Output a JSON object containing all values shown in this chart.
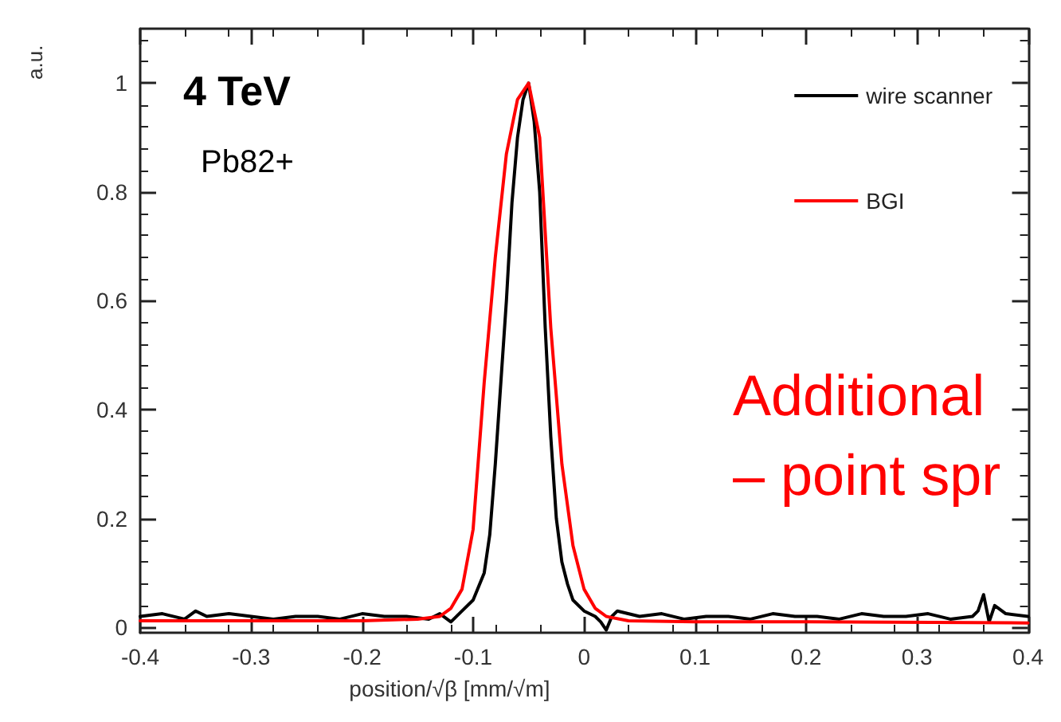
{
  "chart_data": {
    "type": "line",
    "title": "4 TeV",
    "subtitle": "Pb82+",
    "xlabel": "position/√β [mm/√m]",
    "ylabel": "a.u.",
    "annotations": [
      "Additional\n– point spr"
    ],
    "xlim": [
      -0.4,
      0.4
    ],
    "xticks": [
      -0.4,
      -0.3,
      -0.2,
      -0.1,
      0,
      0.1,
      0.2,
      0.3,
      0.4
    ],
    "ylim": [
      -0.01,
      1.1
    ],
    "yticks": [
      0,
      0.2,
      0.4,
      0.6,
      0.8,
      1
    ],
    "grid": false,
    "legend": "top right",
    "marker": "none",
    "line_style": "solid",
    "series": [
      {
        "name": "wire scanner",
        "color": "#000000",
        "x": [
          -0.4,
          -0.38,
          -0.36,
          -0.35,
          -0.34,
          -0.32,
          -0.3,
          -0.28,
          -0.26,
          -0.24,
          -0.22,
          -0.2,
          -0.18,
          -0.16,
          -0.14,
          -0.13,
          -0.12,
          -0.11,
          -0.1,
          -0.09,
          -0.085,
          -0.08,
          -0.075,
          -0.07,
          -0.065,
          -0.06,
          -0.055,
          -0.05,
          -0.045,
          -0.04,
          -0.035,
          -0.03,
          -0.025,
          -0.02,
          -0.015,
          -0.01,
          0,
          0.01,
          0.015,
          0.02,
          0.025,
          0.03,
          0.05,
          0.07,
          0.09,
          0.11,
          0.13,
          0.15,
          0.17,
          0.19,
          0.21,
          0.23,
          0.25,
          0.27,
          0.29,
          0.31,
          0.33,
          0.35,
          0.355,
          0.36,
          0.365,
          0.37,
          0.38,
          0.4
        ],
        "values": [
          0.02,
          0.025,
          0.015,
          0.03,
          0.02,
          0.025,
          0.02,
          0.015,
          0.02,
          0.02,
          0.015,
          0.025,
          0.02,
          0.02,
          0.015,
          0.025,
          0.01,
          0.03,
          0.05,
          0.1,
          0.17,
          0.3,
          0.45,
          0.6,
          0.78,
          0.9,
          0.97,
          1.0,
          0.93,
          0.8,
          0.55,
          0.35,
          0.2,
          0.12,
          0.08,
          0.05,
          0.03,
          0.02,
          0.01,
          -0.005,
          0.02,
          0.03,
          0.02,
          0.025,
          0.015,
          0.02,
          0.02,
          0.015,
          0.025,
          0.02,
          0.02,
          0.015,
          0.025,
          0.02,
          0.02,
          0.025,
          0.015,
          0.02,
          0.03,
          0.06,
          0.01,
          0.04,
          0.025,
          0.02
        ]
      },
      {
        "name": "BGI",
        "color": "#ff0000",
        "x": [
          -0.4,
          -0.3,
          -0.2,
          -0.15,
          -0.13,
          -0.12,
          -0.11,
          -0.1,
          -0.09,
          -0.08,
          -0.07,
          -0.06,
          -0.05,
          -0.04,
          -0.03,
          -0.02,
          -0.01,
          0,
          0.01,
          0.02,
          0.04,
          0.1,
          0.2,
          0.4
        ],
        "values": [
          0.012,
          0.012,
          0.012,
          0.015,
          0.02,
          0.035,
          0.07,
          0.18,
          0.45,
          0.68,
          0.87,
          0.97,
          1.0,
          0.9,
          0.55,
          0.3,
          0.15,
          0.07,
          0.035,
          0.02,
          0.012,
          0.01,
          0.01,
          0.008
        ]
      }
    ]
  }
}
